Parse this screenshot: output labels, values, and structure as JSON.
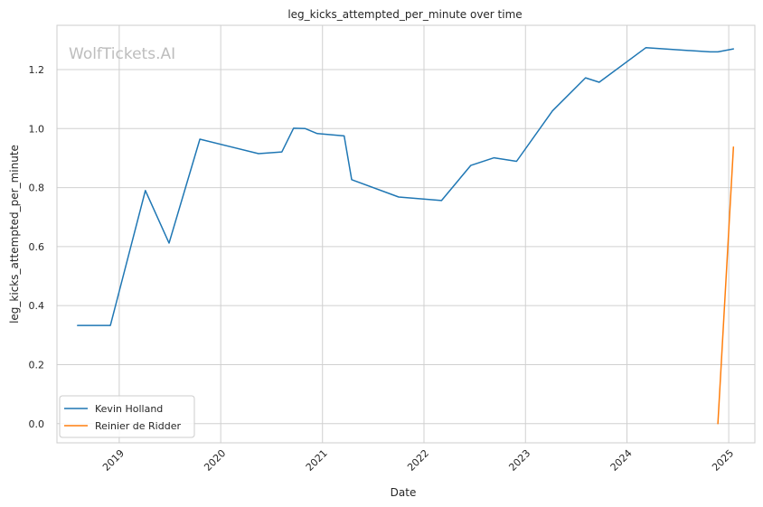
{
  "watermark": "WolfTickets.AI",
  "colors": {
    "grid": "#d0d0d0",
    "frame": "#cccccc",
    "background": "#ffffff"
  },
  "chart_data": {
    "type": "line",
    "title": "leg_kicks_attempted_per_minute over time",
    "xlabel": "Date",
    "ylabel": "leg_kicks_attempted_per_minute",
    "xlim": [
      "2018-05-22",
      "2025-04-05"
    ],
    "ylim": [
      -0.065,
      1.35
    ],
    "x_ticks": [
      "2019-01-01",
      "2020-01-01",
      "2021-01-01",
      "2022-01-01",
      "2023-01-01",
      "2024-01-01",
      "2025-01-01"
    ],
    "x_tick_labels": [
      "2019",
      "2020",
      "2021",
      "2022",
      "2023",
      "2024",
      "2025"
    ],
    "y_ticks": [
      0.0,
      0.2,
      0.4,
      0.6,
      0.8,
      1.0,
      1.2
    ],
    "y_tick_labels": [
      "0.0",
      "0.2",
      "0.4",
      "0.6",
      "0.8",
      "1.0",
      "1.2"
    ],
    "grid": true,
    "legend_position": "lower-left",
    "series": [
      {
        "name": "Kevin Holland",
        "color": "#1f77b4",
        "points": [
          {
            "x": "2018-08-04",
            "y": 0.333
          },
          {
            "x": "2018-11-30",
            "y": 0.333
          },
          {
            "x": "2019-04-05",
            "y": 0.79
          },
          {
            "x": "2019-06-29",
            "y": 0.612
          },
          {
            "x": "2019-10-18",
            "y": 0.964
          },
          {
            "x": "2020-05-16",
            "y": 0.915
          },
          {
            "x": "2020-08-08",
            "y": 0.921
          },
          {
            "x": "2020-09-19",
            "y": 1.001
          },
          {
            "x": "2020-10-31",
            "y": 1.0
          },
          {
            "x": "2020-12-13",
            "y": 0.983
          },
          {
            "x": "2021-03-20",
            "y": 0.975
          },
          {
            "x": "2021-04-16",
            "y": 0.827
          },
          {
            "x": "2021-10-02",
            "y": 0.768
          },
          {
            "x": "2022-03-05",
            "y": 0.756
          },
          {
            "x": "2022-06-18",
            "y": 0.875
          },
          {
            "x": "2022-09-10",
            "y": 0.901
          },
          {
            "x": "2022-11-30",
            "y": 0.889
          },
          {
            "x": "2023-04-08",
            "y": 1.06
          },
          {
            "x": "2023-08-05",
            "y": 1.172
          },
          {
            "x": "2023-09-23",
            "y": 1.157
          },
          {
            "x": "2024-03-09",
            "y": 1.274
          },
          {
            "x": "2024-10-26",
            "y": 1.26
          },
          {
            "x": "2024-11-23",
            "y": 1.26
          },
          {
            "x": "2025-01-18",
            "y": 1.27
          }
        ]
      },
      {
        "name": "Reinier de Ridder",
        "color": "#ff7f0e",
        "points": [
          {
            "x": "2024-11-23",
            "y": 0.0
          },
          {
            "x": "2025-01-18",
            "y": 0.937
          }
        ]
      }
    ]
  }
}
